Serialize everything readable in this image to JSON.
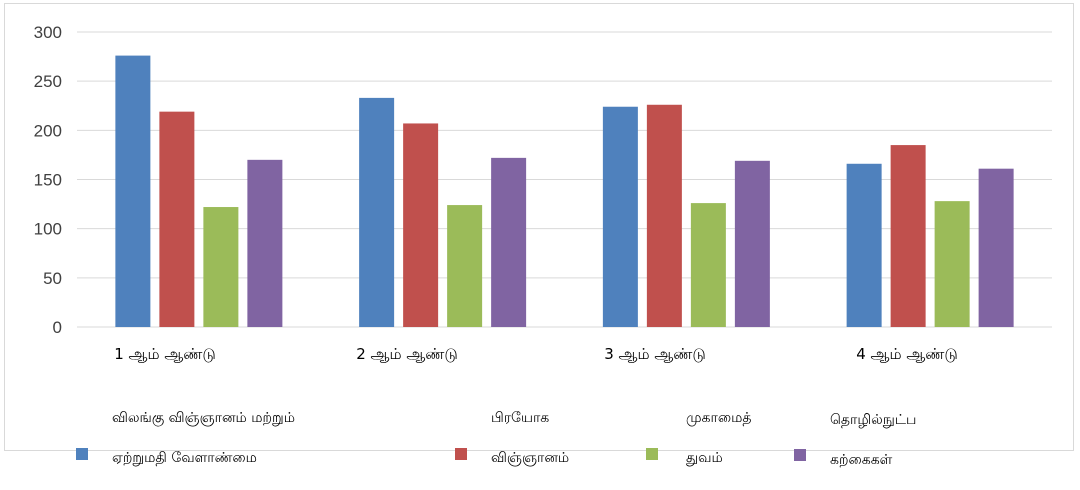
{
  "chart_data": {
    "type": "bar",
    "categories": [
      "1 ஆம்  ஆண்டு",
      "2 ஆம்  ஆண்டு",
      "3 ஆம்  ஆண்டு",
      "4 ஆம்  ஆண்டு"
    ],
    "series": [
      {
        "name": "விலங்கு விஞ்ஞானம் மற்றும் ஏற்றுமதி வேளாண்மை",
        "values": [
          276,
          233,
          224,
          166
        ],
        "color": "#4f81bd"
      },
      {
        "name": "பிரயோக விஞ்ஞானம்",
        "values": [
          219,
          207,
          226,
          185
        ],
        "color": "#c0504d"
      },
      {
        "name": "முகாமைத் துவம்",
        "values": [
          122,
          124,
          126,
          128
        ],
        "color": "#9bbb59"
      },
      {
        "name": "தொழில்நுட்ப கற்கைகள்",
        "values": [
          170,
          172,
          169,
          161
        ],
        "color": "#8064a2"
      }
    ],
    "ylim": [
      0,
      300
    ],
    "yticks": [
      "0",
      "50",
      "100",
      "150",
      "200",
      "250",
      "300"
    ],
    "grid": true,
    "legend_position": "bottom"
  },
  "legend": {
    "items": [
      {
        "line1": "விலங்கு விஞ்ஞானம் மற்றும்",
        "line2": "ஏற்றுமதி வேளாண்மை"
      },
      {
        "line1": "பிரயோக",
        "line2": "விஞ்ஞானம்"
      },
      {
        "line1": "முகாமைத்",
        "line2": "துவம்"
      },
      {
        "line1": "தொழில்நுட்ப",
        "line2": "கற்கைகள்"
      }
    ]
  }
}
